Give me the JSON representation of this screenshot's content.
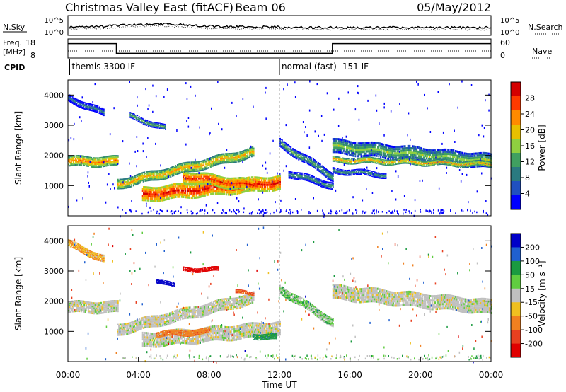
{
  "header": {
    "title": "Christmas Valley East (fitACF)",
    "beam": "Beam 06",
    "date": "05/May/2012"
  },
  "strips": {
    "nsky_label": "N.Sky",
    "nsky_ticks": [
      "10^5",
      "10^0"
    ],
    "nsearch_label": "N.Search",
    "nsearch_ticks": [
      "10^5",
      "10^0"
    ],
    "freq_label": "Freq.",
    "freq_unit": "[MHz]",
    "freq_ticks": [
      "18",
      "8"
    ],
    "nave_label": "Nave",
    "nave_ticks": [
      "60",
      "0"
    ],
    "cpid_label": "CPID",
    "cpid_modes": [
      {
        "text": "themis 3300 IF",
        "start_hour": 0.1
      },
      {
        "text": "normal (fast) -151 IF",
        "start_hour": 12.0
      }
    ],
    "freq_steps": [
      {
        "from": 0,
        "to": 2.75,
        "level": 0.8
      },
      {
        "from": 2.75,
        "to": 15.0,
        "level": 0.2
      },
      {
        "from": 15.0,
        "to": 24,
        "level": 0.8
      }
    ]
  },
  "power_panel": {
    "ylabel": "Slant Range [km]",
    "colorbar_label": "Power [dB]",
    "colorbar_ticks": [
      "28",
      "24",
      "20",
      "16",
      "12",
      "8",
      "4"
    ]
  },
  "velocity_panel": {
    "ylabel": "Slant Range [km]",
    "colorbar_label": "Velocity [m s⁻¹]",
    "colorbar_ticks": [
      "200",
      "100",
      "50",
      "15",
      "-15",
      "-50",
      "-100",
      "-200"
    ]
  },
  "xaxis": {
    "ticks": [
      "00:00",
      "04:00",
      "08:00",
      "12:00",
      "16:00",
      "20:00",
      "00:00"
    ],
    "label": "Time UT"
  },
  "colors": {
    "power_scale": [
      "#d40000",
      "#ff3a00",
      "#ff8a00",
      "#e8c000",
      "#8fd040",
      "#40a060",
      "#2a7a80",
      "#2050c0",
      "#0000ff"
    ],
    "velocity_scale": [
      "#0000c8",
      "#2060d0",
      "#1a9a40",
      "#60cc40",
      "#c0c0c0",
      "#f0c020",
      "#f08020",
      "#e84020",
      "#e00000"
    ]
  },
  "chart_data": [
    {
      "type": "heatmap",
      "title": "Power",
      "x_units": "hours UT",
      "xlim": [
        0,
        24
      ],
      "ylim": [
        0,
        4500
      ],
      "ylabel": "Slant Range [km]",
      "yticks": [
        1000,
        2000,
        3000,
        4000
      ],
      "colorbar": {
        "label": "Power [dB]",
        "range": [
          0,
          30
        ],
        "ticks": [
          4,
          8,
          12,
          16,
          20,
          24,
          28
        ]
      },
      "bands": [
        {
          "t0": 0,
          "t1": 2.8,
          "r0": 1800,
          "r1": 1800,
          "width": 350,
          "power": 22
        },
        {
          "t0": 2.8,
          "t1": 10.5,
          "r0": 1050,
          "r1": 2100,
          "width": 350,
          "power": 20
        },
        {
          "t0": 4.2,
          "t1": 12.0,
          "r0": 700,
          "r1": 1100,
          "width": 500,
          "power": 27
        },
        {
          "t0": 6.5,
          "t1": 10.5,
          "r0": 1300,
          "r1": 1000,
          "width": 400,
          "power": 26
        },
        {
          "t0": 12.0,
          "t1": 15.0,
          "r0": 2400,
          "r1": 1300,
          "width": 300,
          "power": 12
        },
        {
          "t0": 12.5,
          "t1": 15.0,
          "r0": 1400,
          "r1": 1000,
          "width": 250,
          "power": 10
        },
        {
          "t0": 15.0,
          "t1": 24,
          "r0": 2300,
          "r1": 1800,
          "width": 500,
          "power": 14
        },
        {
          "t0": 15.0,
          "t1": 24,
          "r0": 1850,
          "r1": 1700,
          "width": 200,
          "power": 20
        },
        {
          "t0": 15.0,
          "t1": 18.0,
          "r0": 1500,
          "r1": 1350,
          "width": 200,
          "power": 10
        },
        {
          "t0": 0,
          "t1": 2.0,
          "r0": 3900,
          "r1": 3400,
          "width": 250,
          "power": 8
        },
        {
          "t0": 3.5,
          "t1": 5.5,
          "r0": 3300,
          "r1": 2900,
          "width": 200,
          "power": 12
        }
      ]
    },
    {
      "type": "heatmap",
      "title": "Velocity",
      "x_units": "hours UT",
      "xlim": [
        0,
        24
      ],
      "ylim": [
        0,
        4500
      ],
      "ylabel": "Slant Range [km]",
      "yticks": [
        1000,
        2000,
        3000,
        4000
      ],
      "colorbar": {
        "label": "Velocity [m s⁻¹]",
        "range": [
          -250,
          250
        ],
        "ticks": [
          200,
          100,
          50,
          15,
          -15,
          -50,
          -100,
          -200
        ]
      },
      "bands": [
        {
          "t0": 0,
          "t1": 2.8,
          "r0": 1800,
          "r1": 1800,
          "width": 400,
          "velocity": 0
        },
        {
          "t0": 2.8,
          "t1": 10.5,
          "r0": 1050,
          "r1": 2100,
          "width": 400,
          "velocity": 0
        },
        {
          "t0": 4.2,
          "t1": 12.0,
          "r0": 700,
          "r1": 1100,
          "width": 500,
          "velocity": 0
        },
        {
          "t0": 5.0,
          "t1": 8.0,
          "r0": 900,
          "r1": 1000,
          "width": 200,
          "velocity": -60
        },
        {
          "t0": 10.5,
          "t1": 11.8,
          "r0": 850,
          "r1": 800,
          "width": 200,
          "velocity": 60
        },
        {
          "t0": 12.0,
          "t1": 15.0,
          "r0": 2400,
          "r1": 1300,
          "width": 300,
          "velocity": 20
        },
        {
          "t0": 15.0,
          "t1": 24,
          "r0": 2300,
          "r1": 1800,
          "width": 500,
          "velocity": 0
        },
        {
          "t0": 0,
          "t1": 2.0,
          "r0": 3900,
          "r1": 3400,
          "width": 250,
          "velocity": -30
        },
        {
          "t0": 6.5,
          "t1": 8.5,
          "r0": 3050,
          "r1": 3050,
          "width": 150,
          "velocity": -220
        },
        {
          "t0": 5.0,
          "t1": 6.0,
          "r0": 2700,
          "r1": 2500,
          "width": 150,
          "velocity": 210
        },
        {
          "t0": 9.5,
          "t1": 10.5,
          "r0": 2300,
          "r1": 2250,
          "width": 120,
          "velocity": -80
        }
      ]
    }
  ]
}
